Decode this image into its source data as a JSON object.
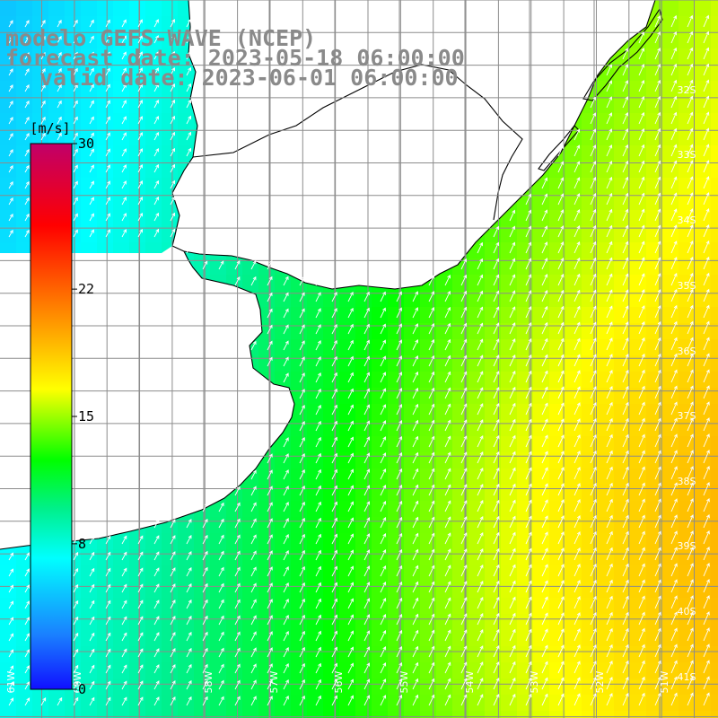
{
  "header": {
    "title": "modelo GEFS-WAVE (NCEP)",
    "forecast_date": "forecast date: 2023-05-18 06:00:00",
    "valid_date": "valid date: 2023-06-01 06:00:00"
  },
  "colorbar": {
    "unit": "[m/s]",
    "tick_labels": [
      "30",
      "22",
      "15",
      "8",
      "0"
    ],
    "tick_values": [
      30,
      22,
      15,
      8,
      0
    ],
    "min": 0,
    "max": 30,
    "stops": [
      "#1010ff",
      "#1a80ff",
      "#00ffff",
      "#00f08c",
      "#00ff00",
      "#ffff00",
      "#ff8000",
      "#ff0000",
      "#c0006a"
    ]
  },
  "map": {
    "lon_range": [
      -60,
      -49
    ],
    "lat_range": [
      -41,
      -30
    ],
    "lat_labels": [
      "32S",
      "33S",
      "34S",
      "35S",
      "36S",
      "37S",
      "38S",
      "39S",
      "40S",
      "41S"
    ],
    "lon_labels": [
      "61W",
      "60W",
      "58W",
      "57W",
      "56W",
      "55W",
      "54W",
      "53W",
      "52W",
      "51W"
    ],
    "land_color": "#ffffff",
    "coast_color": "#000000",
    "grid_color": "#8c8c8c",
    "vector_color": "#ffffff"
  }
}
